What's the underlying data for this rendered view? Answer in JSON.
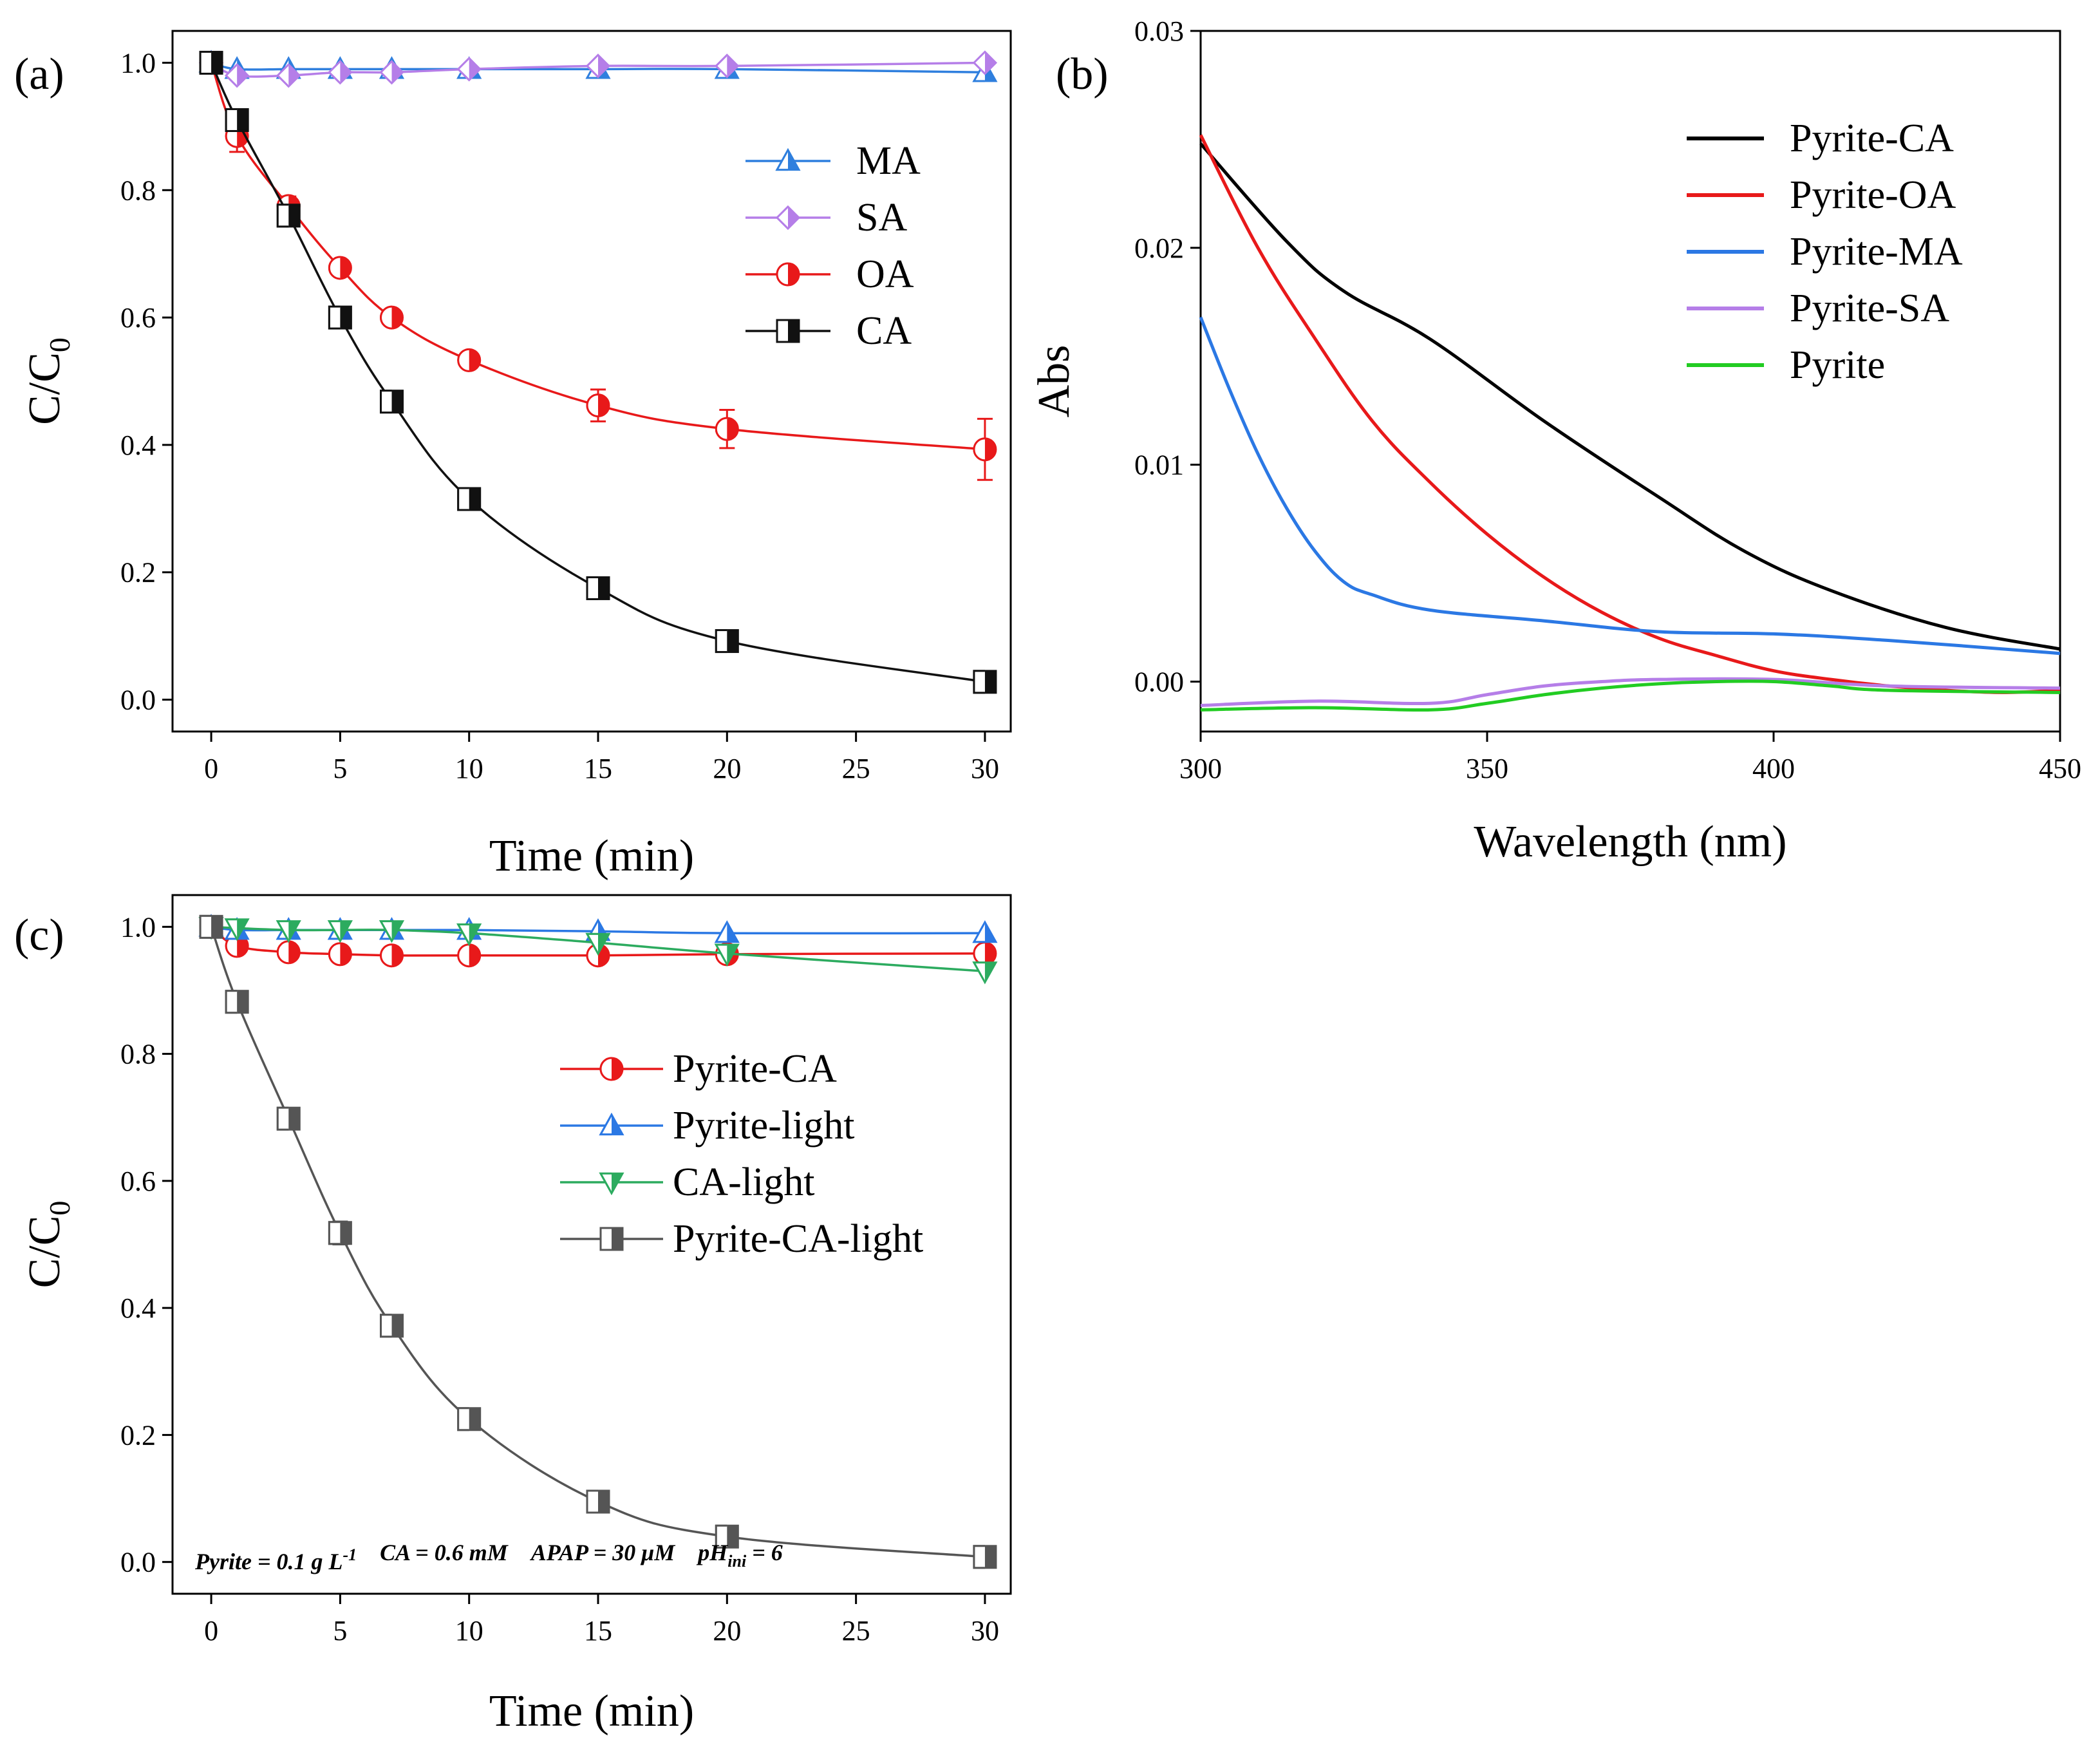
{
  "chart_data": [
    {
      "id": "a",
      "type": "line",
      "panel_label": "(a)",
      "xlabel": "Time (min)",
      "ylabel_main": "C/C",
      "ylabel_sub": "0",
      "xlim": [
        -1.5,
        31
      ],
      "ylim": [
        -0.05,
        1.05
      ],
      "xticks": [
        0,
        5,
        10,
        15,
        20,
        25,
        30
      ],
      "xtick_labels": [
        "0",
        "5",
        "10",
        "15",
        "20",
        "25",
        "30"
      ],
      "yticks": [
        0.0,
        0.2,
        0.4,
        0.6,
        0.8,
        1.0
      ],
      "ytick_labels": [
        "0.0",
        "0.2",
        "0.4",
        "0.6",
        "0.8",
        "1.0"
      ],
      "legend_position": "top-right",
      "series": [
        {
          "name": "MA",
          "color": "#2f7fde",
          "marker": "triangle-up",
          "x": [
            0,
            1,
            3,
            5,
            7,
            10,
            15,
            20,
            30
          ],
          "y": [
            1.0,
            0.99,
            0.99,
            0.99,
            0.99,
            0.99,
            0.99,
            0.99,
            0.985
          ],
          "err": [
            0,
            0,
            0,
            0,
            0,
            0,
            0,
            0,
            0
          ]
        },
        {
          "name": "SA",
          "color": "#b57ee8",
          "marker": "diamond",
          "x": [
            0,
            1,
            3,
            5,
            7,
            10,
            15,
            20,
            30
          ],
          "y": [
            1.0,
            0.98,
            0.98,
            0.985,
            0.985,
            0.99,
            0.995,
            0.995,
            1.0
          ],
          "err": [
            0,
            0,
            0,
            0,
            0,
            0,
            0,
            0,
            0
          ]
        },
        {
          "name": "OA",
          "color": "#e8191a",
          "marker": "circle",
          "x": [
            0,
            1,
            3,
            5,
            7,
            10,
            15,
            20,
            30
          ],
          "y": [
            1.0,
            0.885,
            0.775,
            0.678,
            0.6,
            0.533,
            0.462,
            0.425,
            0.393
          ],
          "err": [
            0,
            0.025,
            0.015,
            0.01,
            0.01,
            0.012,
            0.025,
            0.03,
            0.048
          ]
        },
        {
          "name": "CA",
          "color": "#111111",
          "marker": "square",
          "x": [
            0,
            1,
            3,
            5,
            7,
            10,
            15,
            20,
            30
          ],
          "y": [
            1.0,
            0.91,
            0.76,
            0.6,
            0.468,
            0.315,
            0.175,
            0.092,
            0.028
          ],
          "err": [
            0,
            0.01,
            0.012,
            0.012,
            0.01,
            0.01,
            0.01,
            0.01,
            0.008
          ]
        }
      ]
    },
    {
      "id": "b",
      "type": "line",
      "panel_label": "(b)",
      "xlabel": "Wavelength (nm)",
      "ylabel_main": "Abs",
      "ylabel_sub": "",
      "xlim": [
        300,
        450
      ],
      "ylim": [
        -0.0023,
        0.03
      ],
      "xticks": [
        300,
        350,
        400,
        450
      ],
      "xtick_labels": [
        "300",
        "350",
        "400",
        "450"
      ],
      "yticks": [
        0.0,
        0.01,
        0.02,
        0.03
      ],
      "ytick_labels": [
        "0.00",
        "0.01",
        "0.02",
        "0.03"
      ],
      "legend_position": "top-right",
      "series": [
        {
          "name": "Pyrite-CA",
          "color": "#000000",
          "x": [
            300,
            315,
            325,
            340,
            360,
            380,
            395,
            410,
            430,
            450
          ],
          "y": [
            0.0248,
            0.0203,
            0.018,
            0.0158,
            0.012,
            0.0085,
            0.006,
            0.0042,
            0.0025,
            0.0015
          ]
        },
        {
          "name": "Pyrite-OA",
          "color": "#e8191a",
          "x": [
            300,
            310,
            320,
            330,
            340,
            350,
            360,
            370,
            380,
            390,
            400,
            410,
            420,
            430,
            440,
            450
          ],
          "y": [
            0.0252,
            0.02,
            0.0158,
            0.012,
            0.0092,
            0.0068,
            0.0048,
            0.0032,
            0.002,
            0.0012,
            0.0005,
            0.0001,
            -0.0002,
            -0.0004,
            -0.0005,
            -0.0004
          ]
        },
        {
          "name": "Pyrite-MA",
          "color": "#2b78e4",
          "x": [
            300,
            305,
            310,
            315,
            320,
            325,
            330,
            340,
            360,
            380,
            400,
            420,
            450
          ],
          "y": [
            0.0168,
            0.0135,
            0.0105,
            0.008,
            0.006,
            0.0046,
            0.004,
            0.0033,
            0.0028,
            0.0023,
            0.0022,
            0.0019,
            0.0013
          ]
        },
        {
          "name": "Pyrite-SA",
          "color": "#b57ee8",
          "x": [
            300,
            320,
            340,
            350,
            360,
            370,
            380,
            400,
            420,
            450
          ],
          "y": [
            -0.0011,
            -0.0009,
            -0.001,
            -0.0006,
            -0.0002,
            0.0,
            0.0001,
            0.0001,
            -0.0002,
            -0.0003
          ]
        },
        {
          "name": "Pyrite",
          "color": "#22cc22",
          "x": [
            300,
            320,
            340,
            350,
            360,
            370,
            380,
            390,
            400,
            410,
            420,
            450
          ],
          "y": [
            -0.0013,
            -0.0012,
            -0.0013,
            -0.001,
            -0.0006,
            -0.0003,
            -0.0001,
            0.0,
            0.0,
            -0.0002,
            -0.0004,
            -0.0005
          ]
        }
      ]
    },
    {
      "id": "c",
      "type": "line",
      "panel_label": "(c)",
      "xlabel": "Time (min)",
      "ylabel_main": "C/C",
      "ylabel_sub": "0",
      "xlim": [
        -1.5,
        31
      ],
      "ylim": [
        -0.05,
        1.05
      ],
      "xticks": [
        0,
        5,
        10,
        15,
        20,
        25,
        30
      ],
      "xtick_labels": [
        "0",
        "5",
        "10",
        "15",
        "20",
        "25",
        "30"
      ],
      "yticks": [
        0.0,
        0.2,
        0.4,
        0.6,
        0.8,
        1.0
      ],
      "ytick_labels": [
        "0.0",
        "0.2",
        "0.4",
        "0.6",
        "0.8",
        "1.0"
      ],
      "legend_position": "center-right",
      "series": [
        {
          "name": "Pyrite-CA",
          "color": "#e8191a",
          "marker": "circle",
          "x": [
            0,
            1,
            3,
            5,
            7,
            10,
            15,
            20,
            30
          ],
          "y": [
            1.0,
            0.97,
            0.96,
            0.957,
            0.955,
            0.955,
            0.955,
            0.957,
            0.958
          ],
          "err": [
            0,
            0,
            0,
            0,
            0,
            0,
            0,
            0,
            0
          ]
        },
        {
          "name": "Pyrite-light",
          "color": "#2b78e4",
          "marker": "triangle-up",
          "x": [
            0,
            1,
            3,
            5,
            7,
            10,
            15,
            20,
            30
          ],
          "y": [
            1.0,
            0.995,
            0.995,
            0.995,
            0.995,
            0.995,
            0.993,
            0.99,
            0.99
          ],
          "err": [
            0,
            0,
            0,
            0,
            0,
            0,
            0,
            0,
            0
          ]
        },
        {
          "name": "CA-light",
          "color": "#2cab5f",
          "marker": "triangle-down",
          "x": [
            0,
            1,
            3,
            5,
            7,
            10,
            15,
            20,
            30
          ],
          "y": [
            1.0,
            0.998,
            0.995,
            0.995,
            0.995,
            0.99,
            0.975,
            0.958,
            0.93
          ],
          "err": [
            0,
            0,
            0,
            0,
            0,
            0,
            0,
            0,
            0
          ]
        },
        {
          "name": "Pyrite-CA-light",
          "color": "#555555",
          "marker": "square",
          "x": [
            0,
            1,
            3,
            5,
            7,
            10,
            15,
            20,
            30
          ],
          "y": [
            1.0,
            0.882,
            0.698,
            0.518,
            0.372,
            0.225,
            0.095,
            0.04,
            0.008
          ],
          "err": [
            0,
            0.008,
            0.01,
            0.018,
            0.01,
            0.01,
            0.008,
            0.008,
            0.005
          ]
        }
      ],
      "annotation": [
        {
          "text": "Pyrite = 0.1 g L",
          "sup": "-1",
          "sub": ""
        },
        {
          "text": "CA = 0.6 mM",
          "sup": "",
          "sub": ""
        },
        {
          "text": "APAP = 30 μM",
          "sup": "",
          "sub": ""
        },
        {
          "text": "pH",
          "sup": "",
          "sub": "ini",
          "suffix": " = 6"
        }
      ]
    }
  ]
}
